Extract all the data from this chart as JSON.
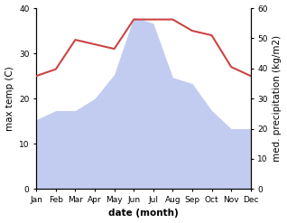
{
  "months": [
    "Jan",
    "Feb",
    "Mar",
    "Apr",
    "May",
    "Jun",
    "Jul",
    "Aug",
    "Sep",
    "Oct",
    "Nov",
    "Dec"
  ],
  "temperature": [
    25,
    26.5,
    33,
    32,
    31,
    37.5,
    37.5,
    37.5,
    35,
    34,
    27,
    25
  ],
  "precipitation": [
    23,
    26,
    26,
    30,
    38,
    57,
    55,
    37,
    35,
    26,
    20,
    20
  ],
  "temp_color": "#cc4444",
  "precip_color": "#b8c4ee",
  "temp_ylim": [
    0,
    40
  ],
  "precip_ylim": [
    0,
    60
  ],
  "temp_yticks": [
    0,
    10,
    20,
    30,
    40
  ],
  "precip_yticks": [
    0,
    10,
    20,
    30,
    40,
    50,
    60
  ],
  "xlabel": "date (month)",
  "ylabel_left": "max temp (C)",
  "ylabel_right": "med. precipitation (kg/m2)",
  "bg_color": "#ffffff",
  "tick_fontsize": 6.5,
  "label_fontsize": 7.5
}
